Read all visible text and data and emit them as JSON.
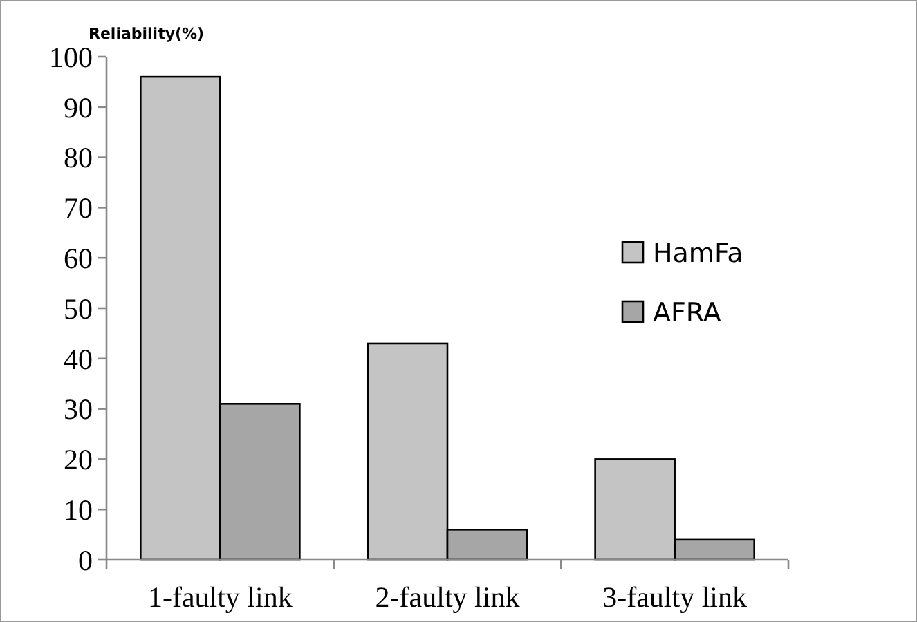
{
  "chart_data": {
    "type": "bar",
    "ylabel": "Reliability(%)",
    "categories": [
      "1-faulty link",
      "2-faulty link",
      "3-faulty link"
    ],
    "series": [
      {
        "name": "HamFa",
        "color": "#c4c4c4",
        "values": [
          96,
          43,
          20
        ]
      },
      {
        "name": "AFRA",
        "color": "#a6a6a6",
        "values": [
          31,
          6,
          4
        ]
      }
    ],
    "ylim": [
      0,
      100
    ],
    "yticks": [
      0,
      10,
      20,
      30,
      40,
      50,
      60,
      70,
      80,
      90,
      100
    ],
    "grid": false,
    "legend": "right"
  }
}
